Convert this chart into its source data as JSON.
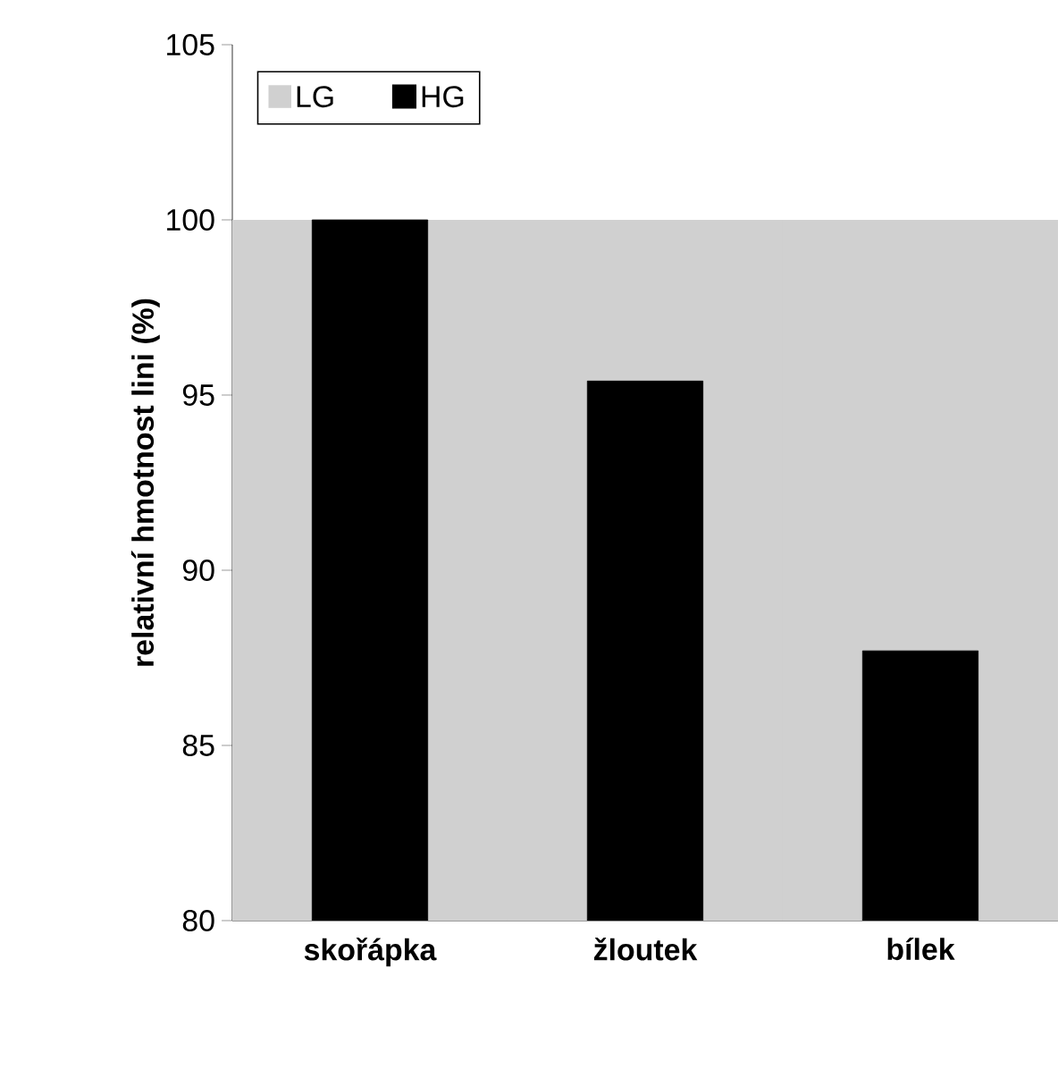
{
  "chart_data": {
    "type": "bar",
    "ylabel": "relativní hmotnost lini (%)",
    "categories": [
      "skořápka",
      "žloutek",
      "bílek"
    ],
    "series": [
      {
        "name": "LG",
        "color": "#d0d0d0",
        "values": [
          100,
          100,
          100
        ]
      },
      {
        "name": "HG",
        "color": "#000000",
        "values": [
          100,
          95.4,
          87.7
        ]
      }
    ],
    "ylim": [
      80,
      105
    ],
    "yticks": [
      80,
      85,
      90,
      95,
      100,
      105
    ],
    "legend": "top left",
    "grid": false
  }
}
